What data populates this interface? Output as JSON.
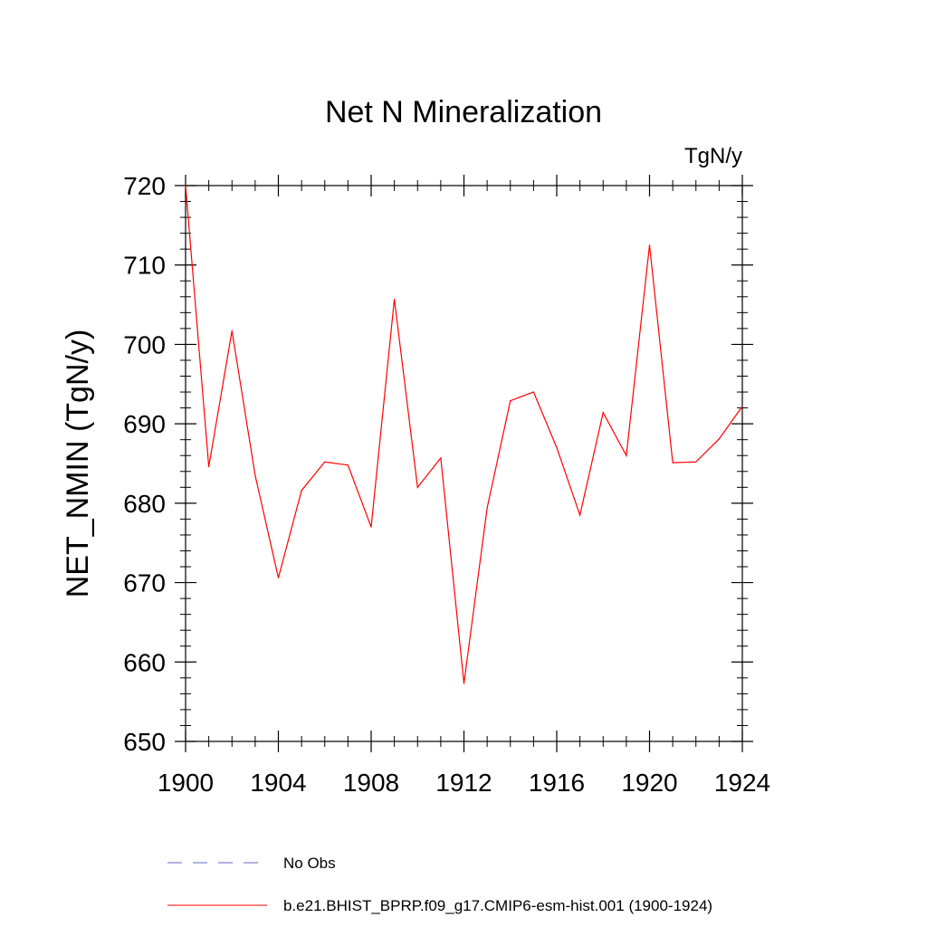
{
  "chart_data": {
    "type": "line",
    "title": "Net N Mineralization",
    "units_label": "TgN/y",
    "ylabel": "NET_NMIN  (TgN/y)",
    "xlabel": "",
    "xlim": [
      1900,
      1924
    ],
    "ylim": [
      650,
      720
    ],
    "x_ticks": [
      1900,
      1904,
      1908,
      1912,
      1916,
      1920,
      1924
    ],
    "y_ticks": [
      650,
      660,
      670,
      680,
      690,
      700,
      710,
      720
    ],
    "grid": false,
    "legend_position": "bottom",
    "series": [
      {
        "name": "b.e21.BHIST_BPRP.f09_g17.CMIP6-esm-hist.001 (1900-1924)",
        "color": "#ff0000",
        "dash": "solid",
        "x": [
          1900,
          1901,
          1902,
          1903,
          1904,
          1905,
          1906,
          1907,
          1908,
          1909,
          1910,
          1911,
          1912,
          1913,
          1914,
          1915,
          1916,
          1917,
          1918,
          1919,
          1920,
          1921,
          1922,
          1923,
          1924
        ],
        "values": [
          720.0,
          684.6,
          701.7,
          683.5,
          670.6,
          681.6,
          685.2,
          684.8,
          677.0,
          705.7,
          682.0,
          685.7,
          657.3,
          679.4,
          692.9,
          694.0,
          687.0,
          678.5,
          691.4,
          686.0,
          712.5,
          685.1,
          685.2,
          688.1,
          692.2
        ]
      },
      {
        "name": "No Obs",
        "color": "#6666cc",
        "dash": "dashed",
        "x": [],
        "values": []
      }
    ]
  },
  "legend": {
    "entries": [
      {
        "label": "No Obs",
        "color": "#6666cc",
        "dash": "dashed"
      },
      {
        "label": "b.e21.BHIST_BPRP.f09_g17.CMIP6-esm-hist.001 (1900-1924)",
        "color": "#ff0000",
        "dash": "solid"
      }
    ]
  }
}
